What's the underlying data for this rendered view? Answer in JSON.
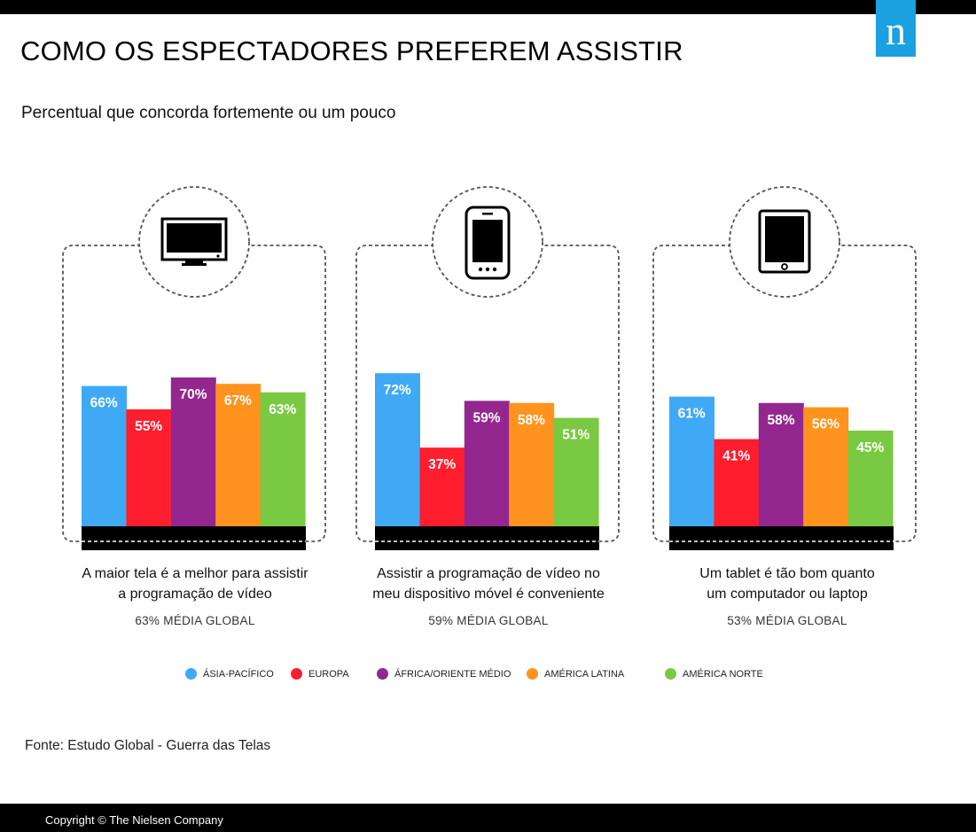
{
  "header": {
    "title": "COMO OS ESPECTADORES PREFEREM ASSISTIR",
    "subtitle": "Percentual que concorda fortemente ou um pouco",
    "logo_letter": "n"
  },
  "colors": {
    "asia_pacific": "#3fa9f5",
    "europe": "#ff1e2d",
    "africa_middle_east": "#93278f",
    "latin_america": "#ff931e",
    "north_america": "#7ac943",
    "logo": "#1ba1e2"
  },
  "chart_data": {
    "type": "bar",
    "ylim": [
      0,
      100
    ],
    "grid": false,
    "legend_position": "bottom",
    "series_names": [
      "ÁSIA-PACÍFICO",
      "EUROPA",
      "ÁFRICA/ORIENTE MÉDIO",
      "AMÉRICA LATINA",
      "AMÉRICA NORTE"
    ],
    "panels": [
      {
        "icon": "tv-icon",
        "statement": [
          "A maior tela é a melhor para assistir",
          "a programação de vídeo"
        ],
        "global_average": "63% MÉDIA GLOBAL",
        "values": [
          66,
          55,
          70,
          67,
          63
        ],
        "labels": [
          "66%",
          "55%",
          "70%",
          "67%",
          "63%"
        ]
      },
      {
        "icon": "smartphone-icon",
        "statement": [
          "Assistir a programação de vídeo no",
          "meu dispositivo móvel é conveniente"
        ],
        "global_average": "59% MÉDIA GLOBAL",
        "values": [
          72,
          37,
          59,
          58,
          51
        ],
        "labels": [
          "72%",
          "37%",
          "59%",
          "58%",
          "51%"
        ]
      },
      {
        "icon": "tablet-icon",
        "statement": [
          "Um tablet é tão bom quanto",
          "um computador ou laptop"
        ],
        "global_average": "53% MÉDIA GLOBAL",
        "values": [
          61,
          41,
          58,
          56,
          45
        ],
        "labels": [
          "61%",
          "41%",
          "58%",
          "56%",
          "45%"
        ]
      }
    ]
  },
  "source": "Fonte: Estudo Global - Guerra das Telas",
  "footer": "Copyright © The Nielsen Company"
}
